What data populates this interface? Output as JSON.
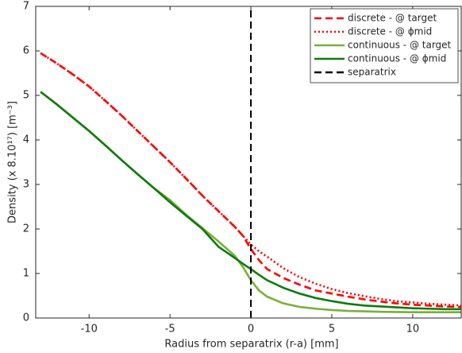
{
  "chart_data": {
    "type": "line",
    "xlabel": "Radius from separatrix (r-a) [mm]",
    "ylabel": "Density (x 8.10¹⁷) [m⁻³]",
    "x": [
      -13,
      -12,
      -11,
      -10,
      -9,
      -8,
      -7,
      -6,
      -5,
      -4,
      -3,
      -2,
      -1,
      -0.5,
      0,
      0.5,
      1,
      2,
      3,
      4,
      5,
      6,
      7,
      8,
      9,
      10,
      11,
      12,
      13
    ],
    "series": [
      {
        "name": "discrete - @ target",
        "color": "#ff0000",
        "dash": "dashed",
        "values": [
          5.95,
          5.72,
          5.47,
          5.2,
          4.88,
          4.55,
          4.2,
          3.85,
          3.5,
          3.13,
          2.75,
          2.4,
          2.05,
          1.85,
          1.55,
          1.3,
          1.1,
          0.9,
          0.75,
          0.62,
          0.55,
          0.48,
          0.42,
          0.37,
          0.33,
          0.3,
          0.28,
          0.26,
          0.25
        ]
      },
      {
        "name": "discrete - @ ϕmid",
        "color": "#ff0000",
        "dash": "dotted",
        "values": [
          5.95,
          5.72,
          5.47,
          5.2,
          4.88,
          4.55,
          4.2,
          3.85,
          3.5,
          3.13,
          2.75,
          2.4,
          2.05,
          1.85,
          1.65,
          1.5,
          1.38,
          1.12,
          0.92,
          0.77,
          0.65,
          0.56,
          0.49,
          0.43,
          0.38,
          0.35,
          0.32,
          0.3,
          0.28
        ]
      },
      {
        "name": "continuous - @ target",
        "color": "#77b03a",
        "dash": "solid",
        "values": [
          5.08,
          4.8,
          4.5,
          4.2,
          3.88,
          3.55,
          3.23,
          2.92,
          2.65,
          2.32,
          2.02,
          1.72,
          1.4,
          1.15,
          0.85,
          0.62,
          0.48,
          0.33,
          0.25,
          0.21,
          0.18,
          0.16,
          0.15,
          0.14,
          0.135,
          0.13,
          0.13,
          0.13,
          0.13
        ]
      },
      {
        "name": "continuous - @ ϕmid",
        "color": "#0e7a0e",
        "dash": "solid",
        "values": [
          5.08,
          4.8,
          4.5,
          4.2,
          3.88,
          3.55,
          3.23,
          2.92,
          2.6,
          2.3,
          2.0,
          1.6,
          1.35,
          1.22,
          1.1,
          0.97,
          0.85,
          0.68,
          0.55,
          0.45,
          0.38,
          0.32,
          0.28,
          0.26,
          0.24,
          0.22,
          0.21,
          0.2,
          0.2
        ]
      },
      {
        "name": "separatrix",
        "color": "#000000",
        "dash": "dashed",
        "x": [
          0,
          0
        ],
        "values": [
          0,
          7
        ]
      }
    ],
    "xlim": [
      -13.3,
      13
    ],
    "xticks": [
      -10,
      -5,
      0,
      5,
      10
    ],
    "ylim": [
      0,
      7
    ],
    "yticks": [
      0,
      1,
      2,
      3,
      4,
      5,
      6,
      7
    ],
    "legend": "upper right",
    "grid": false
  }
}
